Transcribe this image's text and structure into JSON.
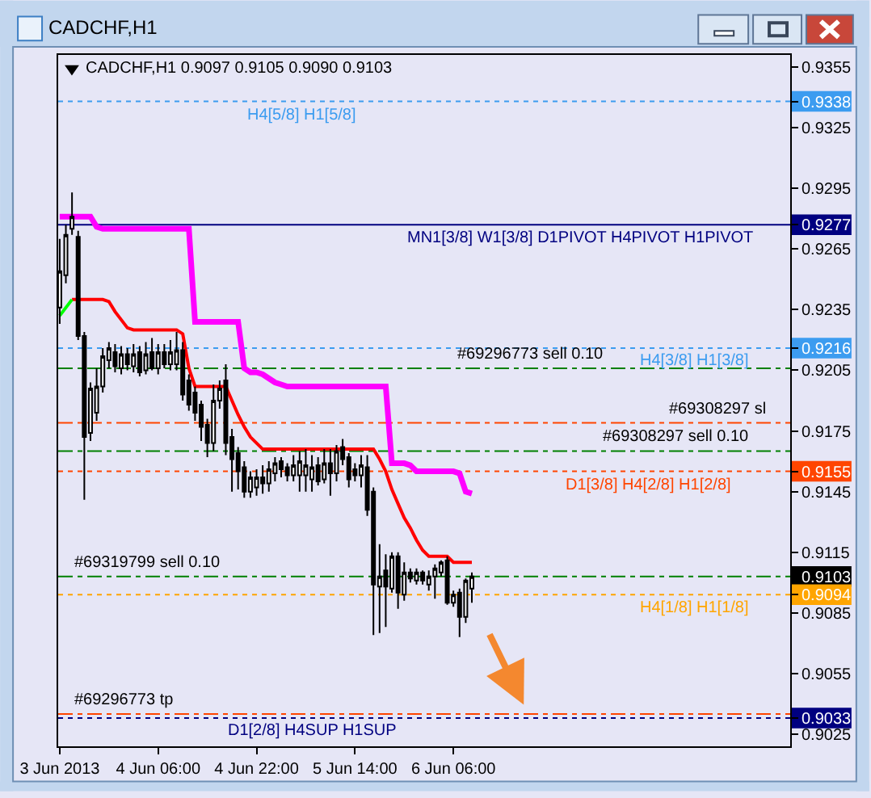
{
  "chart_data": {
    "type": "candlestick",
    "title": "CADCHF,H1",
    "subtitle": "CADCHF,H1 0.9097 0.9105 0.9090 0.9103",
    "x": [
      "2013-06-03T14:00",
      "2013-06-03T15:00",
      "2013-06-03T16:00",
      "2013-06-03T17:00",
      "2013-06-03T18:00",
      "2013-06-03T19:00",
      "2013-06-03T20:00",
      "2013-06-03T21:00",
      "2013-06-03T22:00",
      "2013-06-03T23:00",
      "2013-06-04T00:00",
      "2013-06-04T01:00",
      "2013-06-04T02:00",
      "2013-06-04T03:00",
      "2013-06-04T04:00",
      "2013-06-04T05:00",
      "2013-06-04T06:00",
      "2013-06-04T07:00",
      "2013-06-04T08:00",
      "2013-06-04T09:00",
      "2013-06-04T10:00",
      "2013-06-04T11:00",
      "2013-06-04T12:00",
      "2013-06-04T13:00",
      "2013-06-04T14:00",
      "2013-06-04T15:00",
      "2013-06-04T16:00",
      "2013-06-04T17:00",
      "2013-06-04T18:00",
      "2013-06-04T19:00",
      "2013-06-04T20:00",
      "2013-06-04T21:00",
      "2013-06-04T22:00",
      "2013-06-04T23:00",
      "2013-06-05T00:00",
      "2013-06-05T01:00",
      "2013-06-05T02:00",
      "2013-06-05T03:00",
      "2013-06-05T04:00",
      "2013-06-05T05:00",
      "2013-06-05T06:00",
      "2013-06-05T07:00",
      "2013-06-05T08:00",
      "2013-06-05T09:00",
      "2013-06-05T10:00",
      "2013-06-05T11:00",
      "2013-06-05T12:00",
      "2013-06-05T13:00",
      "2013-06-05T14:00",
      "2013-06-05T15:00",
      "2013-06-05T16:00",
      "2013-06-05T17:00",
      "2013-06-05T18:00",
      "2013-06-05T19:00",
      "2013-06-05T20:00",
      "2013-06-05T21:00",
      "2013-06-05T22:00",
      "2013-06-05T23:00",
      "2013-06-06T00:00",
      "2013-06-06T01:00",
      "2013-06-06T02:00",
      "2013-06-06T03:00",
      "2013-06-06T04:00",
      "2013-06-06T05:00",
      "2013-06-06T06:00",
      "2013-06-06T07:00",
      "2013-06-06T08:00",
      "2013-06-06T09:00"
    ],
    "ohlc": [
      [
        0.9236,
        0.927,
        0.9228,
        0.9254
      ],
      [
        0.9252,
        0.9277,
        0.9248,
        0.9272
      ],
      [
        0.9275,
        0.9293,
        0.9272,
        0.9281
      ],
      [
        0.9271,
        0.9274,
        0.922,
        0.9222
      ],
      [
        0.9222,
        0.9224,
        0.9141,
        0.9172
      ],
      [
        0.9174,
        0.9199,
        0.917,
        0.9196
      ],
      [
        0.9184,
        0.9206,
        0.918,
        0.9197
      ],
      [
        0.9197,
        0.9216,
        0.9194,
        0.9212
      ],
      [
        0.921,
        0.9219,
        0.9206,
        0.9216
      ],
      [
        0.9214,
        0.9218,
        0.9204,
        0.9207
      ],
      [
        0.9206,
        0.9217,
        0.9203,
        0.9213
      ],
      [
        0.9213,
        0.9216,
        0.9205,
        0.9208
      ],
      [
        0.9207,
        0.9218,
        0.9204,
        0.9213
      ],
      [
        0.9214,
        0.9217,
        0.9202,
        0.9204
      ],
      [
        0.9205,
        0.9219,
        0.9203,
        0.9213
      ],
      [
        0.9214,
        0.9221,
        0.9205,
        0.9206
      ],
      [
        0.9206,
        0.9218,
        0.9203,
        0.9214
      ],
      [
        0.9214,
        0.9218,
        0.9206,
        0.9208
      ],
      [
        0.9208,
        0.922,
        0.9205,
        0.9214
      ],
      [
        0.9208,
        0.9224,
        0.9205,
        0.9215
      ],
      [
        0.9215,
        0.9219,
        0.919,
        0.9193
      ],
      [
        0.92,
        0.9203,
        0.9185,
        0.9188
      ],
      [
        0.9194,
        0.9197,
        0.918,
        0.9184
      ],
      [
        0.9188,
        0.919,
        0.917,
        0.9177
      ],
      [
        0.9178,
        0.9181,
        0.9162,
        0.9169
      ],
      [
        0.9169,
        0.9198,
        0.9165,
        0.919
      ],
      [
        0.919,
        0.92,
        0.9186,
        0.9196
      ],
      [
        0.92,
        0.9208,
        0.9163,
        0.9169
      ],
      [
        0.9172,
        0.9176,
        0.9145,
        0.9161
      ],
      [
        0.9164,
        0.9167,
        0.9146,
        0.9155
      ],
      [
        0.9157,
        0.916,
        0.9142,
        0.9145
      ],
      [
        0.9145,
        0.9155,
        0.9142,
        0.9152
      ],
      [
        0.9147,
        0.9156,
        0.9143,
        0.9152
      ],
      [
        0.9152,
        0.9158,
        0.9144,
        0.9149
      ],
      [
        0.9149,
        0.916,
        0.9145,
        0.9156
      ],
      [
        0.9154,
        0.9162,
        0.915,
        0.9159
      ],
      [
        0.916,
        0.9162,
        0.9152,
        0.9156
      ],
      [
        0.9157,
        0.9159,
        0.915,
        0.9153
      ],
      [
        0.9153,
        0.9163,
        0.915,
        0.9158
      ],
      [
        0.9153,
        0.9165,
        0.9145,
        0.916
      ],
      [
        0.9153,
        0.9166,
        0.9145,
        0.9158
      ],
      [
        0.9151,
        0.9163,
        0.9145,
        0.9157
      ],
      [
        0.9158,
        0.9162,
        0.9148,
        0.915
      ],
      [
        0.9151,
        0.9166,
        0.9149,
        0.9159
      ],
      [
        0.9159,
        0.9166,
        0.9143,
        0.9154
      ],
      [
        0.9154,
        0.9168,
        0.915,
        0.9165
      ],
      [
        0.9167,
        0.9171,
        0.9158,
        0.9161
      ],
      [
        0.9162,
        0.9164,
        0.9147,
        0.9151
      ],
      [
        0.9156,
        0.9159,
        0.915,
        0.9153
      ],
      [
        0.9153,
        0.9163,
        0.9147,
        0.9158
      ],
      [
        0.9157,
        0.9163,
        0.9133,
        0.9136
      ],
      [
        0.9145,
        0.9147,
        0.9074,
        0.9099
      ],
      [
        0.9098,
        0.9119,
        0.9075,
        0.9103
      ],
      [
        0.9106,
        0.9114,
        0.9078,
        0.9098
      ],
      [
        0.9097,
        0.9115,
        0.9095,
        0.9113
      ],
      [
        0.9113,
        0.9115,
        0.9087,
        0.9095
      ],
      [
        0.9094,
        0.911,
        0.9091,
        0.9105
      ],
      [
        0.9105,
        0.9107,
        0.91,
        0.9102
      ],
      [
        0.9101,
        0.9107,
        0.9099,
        0.9105
      ],
      [
        0.9105,
        0.9106,
        0.9099,
        0.9101
      ],
      [
        0.9099,
        0.9106,
        0.9096,
        0.9103
      ],
      [
        0.9103,
        0.9109,
        0.9092,
        0.9107
      ],
      [
        0.9105,
        0.9111,
        0.9103,
        0.911
      ],
      [
        0.9111,
        0.9113,
        0.9089,
        0.909
      ],
      [
        0.909,
        0.9096,
        0.9088,
        0.9094
      ],
      [
        0.9095,
        0.9097,
        0.9073,
        0.9083
      ],
      [
        0.9083,
        0.9102,
        0.908,
        0.9101
      ],
      [
        0.9097,
        0.9105,
        0.909,
        0.9103
      ]
    ],
    "colors": [
      "#ffffff",
      "#ffffff",
      "#ffffff",
      "#000000",
      "#000000",
      "#ffffff",
      "#ffffff",
      "#ffffff",
      "#ffffff",
      "#000000",
      "#ffffff",
      "#000000",
      "#ffffff",
      "#000000",
      "#ffffff",
      "#000000",
      "#ffffff",
      "#000000",
      "#ffffff",
      "#ffffff",
      "#000000",
      "#000000",
      "#000000",
      "#000000",
      "#000000",
      "#ffffff",
      "#ffffff",
      "#000000",
      "#000000",
      "#000000",
      "#000000",
      "#ffffff",
      "#ffffff",
      "#000000",
      "#ffffff",
      "#ffffff",
      "#000000",
      "#000000",
      "#ffffff",
      "#ffffff",
      "#ffffff",
      "#ffffff",
      "#000000",
      "#ffffff",
      "#000000",
      "#ffffff",
      "#000000",
      "#000000",
      "#000000",
      "#ffffff",
      "#000000",
      "#000000",
      "#ffffff",
      "#000000",
      "#ffffff",
      "#000000",
      "#ffffff",
      "#000000",
      "#ffffff",
      "#000000",
      "#ffffff",
      "#ffffff",
      "#ffffff",
      "#000000",
      "#ffffff",
      "#000000",
      "#ffffff",
      "#ffffff"
    ],
    "series": [
      {
        "type": "line",
        "color": "#ff00ff",
        "values": [
          0.9281,
          0.9281,
          0.9281,
          0.9281,
          0.9281,
          0.9281,
          0.9276,
          0.9275,
          0.9275,
          0.9275,
          0.9275,
          0.9275,
          0.9275,
          0.9275,
          0.9275,
          0.9275,
          0.9275,
          0.9275,
          0.9275,
          0.9275,
          0.9275,
          0.9275,
          0.9229,
          0.9229,
          0.9229,
          0.9229,
          0.9229,
          0.9229,
          0.9229,
          0.9229,
          0.9206,
          0.9204,
          0.9204,
          0.9203,
          0.9201,
          0.9199,
          0.9198,
          0.9197,
          0.9197,
          0.9197,
          0.9197,
          0.9197,
          0.9197,
          0.9197,
          0.9197,
          0.9197,
          0.9197,
          0.9197,
          0.9197,
          0.9197,
          0.9197,
          0.9197,
          0.9197,
          0.9197,
          0.9159,
          0.9159,
          0.9159,
          0.9158,
          0.9155,
          0.9155,
          0.9155,
          0.9155,
          0.9155,
          0.9155,
          0.9155,
          0.9154,
          0.9145,
          0.9144
        ]
      },
      {
        "type": "line",
        "color": "#ff0000",
        "values": [
          null,
          null,
          0.924,
          0.924,
          0.924,
          0.924,
          0.924,
          0.924,
          0.9239,
          0.9234,
          0.923,
          0.9226,
          0.9225,
          0.9225,
          0.9225,
          0.9225,
          0.9225,
          0.9225,
          0.9225,
          0.9225,
          0.9223,
          0.9206,
          0.9197,
          0.9197,
          0.9197,
          0.9197,
          0.9197,
          0.9197,
          0.919,
          0.9183,
          0.9177,
          0.9172,
          0.9169,
          0.9166,
          0.9166,
          0.9166,
          0.9166,
          0.9166,
          0.9166,
          0.9166,
          0.9166,
          0.9166,
          0.9166,
          0.9166,
          0.9166,
          0.9166,
          0.9166,
          0.9166,
          0.9166,
          0.9166,
          0.9166,
          0.9166,
          0.9161,
          0.9155,
          0.9146,
          0.9139,
          0.9132,
          0.9127,
          0.9121,
          0.9116,
          0.9113,
          0.9113,
          0.9113,
          0.9113,
          0.911,
          0.911,
          0.911,
          0.911
        ]
      },
      {
        "type": "line",
        "color": "#00ff00",
        "values": [
          0.9232,
          0.9236,
          0.924,
          null,
          null,
          null,
          null,
          null,
          null,
          null,
          null,
          null,
          null,
          null,
          null,
          null,
          null,
          null,
          null,
          null,
          null,
          null,
          null,
          null,
          null,
          null,
          null,
          null,
          null,
          null,
          null,
          null,
          null,
          null,
          null,
          null,
          null,
          null,
          null,
          null,
          null,
          null,
          null,
          null,
          null,
          null,
          null,
          null,
          null,
          null,
          null,
          null,
          null,
          null,
          null,
          null,
          null,
          null,
          null,
          null,
          null,
          null,
          null,
          null,
          null,
          null,
          null,
          null
        ]
      }
    ],
    "ref_lines": [
      {
        "axis": "y",
        "value": 0.9338,
        "label": "H4[5/8] H1[5/8]",
        "color": "#3c9cf0",
        "line_style": "dotted"
      },
      {
        "axis": "y",
        "value": 0.9277,
        "label": "MN1[3/8] W1[3/8] D1PIVOT H4PIVOT H1PIVOT",
        "color": "#000080",
        "line_style": "solid"
      },
      {
        "axis": "y",
        "value": 0.9216,
        "label": "H4[3/8] H1[3/8]",
        "color": "#3c9cf0",
        "line_style": "dotted"
      },
      {
        "axis": "y",
        "value": 0.9206,
        "label": "#69296773 sell 0.10",
        "color": "#008000",
        "line_style": "dashed"
      },
      {
        "axis": "y",
        "value": 0.9179,
        "label": "#69308297 sl",
        "color": "#ff4500",
        "line_style": "dashed"
      },
      {
        "axis": "y",
        "value": 0.9165,
        "label": "#69308297 sell 0.10",
        "color": "#008000",
        "line_style": "dashed"
      },
      {
        "axis": "y",
        "value": 0.9155,
        "label": "D1[3/8] H4[2/8] H1[2/8]",
        "color": "#ff4500",
        "line_style": "dotted"
      },
      {
        "axis": "y",
        "value": 0.9103,
        "label": "#69319799 sell 0.10",
        "color": "#008000",
        "line_style": "dashed"
      },
      {
        "axis": "y",
        "value": 0.9094,
        "label": "H4[1/8] H1[1/8]",
        "color": "#ffa500",
        "line_style": "dotted"
      },
      {
        "axis": "y",
        "value": 0.9035,
        "label": "#69296773 tp",
        "color": "#ff4500",
        "line_style": "dashed"
      },
      {
        "axis": "y",
        "value": 0.9033,
        "label": "D1[2/8] H4SUP H1SUP",
        "color": "#000080",
        "line_style": "dotted"
      }
    ],
    "xlim": [
      "2013-06-03T13:45",
      "2013-06-08T12:45"
    ],
    "xticks": [
      {
        "value": "2013-06-03T14:00",
        "label": "3 Jun 2013"
      },
      {
        "value": "2013-06-04T06:00",
        "label": "4 Jun 06:00"
      },
      {
        "value": "2013-06-04T22:00",
        "label": "4 Jun 22:00"
      },
      {
        "value": "2013-06-05T14:00",
        "label": "5 Jun 14:00"
      },
      {
        "value": "2013-06-06T06:00",
        "label": "6 Jun 06:00"
      }
    ],
    "ylim": [
      0.9019,
      0.9361
    ],
    "yticks": [
      0.9355,
      0.9338,
      0.9325,
      0.9295,
      0.9277,
      0.9265,
      0.9235,
      0.9216,
      0.9205,
      0.9175,
      0.9155,
      0.9145,
      0.9115,
      0.9103,
      0.9094,
      0.9085,
      0.9055,
      0.9033,
      0.9025
    ]
  }
}
